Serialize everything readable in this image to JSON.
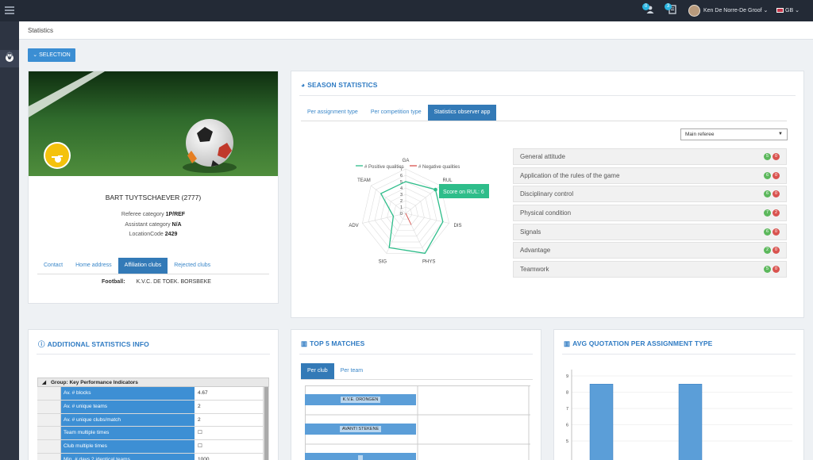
{
  "topbar": {
    "notif1_count": "0",
    "notif2_count": "3",
    "user_name": "Ken De Norre-De Groof",
    "language": "GB"
  },
  "breadcrumb": "Statistics",
  "selection_button": "SELECTION",
  "profile": {
    "name": "BART TUYTSCHAEVER (2777)",
    "referee_label": "Referee category",
    "referee_value": "1P/REF",
    "assistant_label": "Assistant category",
    "assistant_value": "N/A",
    "location_label": "LocationCode",
    "location_value": "2429",
    "tabs": [
      "Contact",
      "Home address",
      "Affiliation clubs",
      "Rejected clubs"
    ],
    "active_tab": 2,
    "affiliation_label": "Football:",
    "affiliation_value": "K.V.C. DE TOEK. BORSBEKE"
  },
  "season": {
    "title": "SEASON STATISTICS",
    "tabs": [
      "Per assignment type",
      "Per competition type",
      "Statistics observer app"
    ],
    "active_tab": 2,
    "dropdown": "Main referee",
    "legend_positive": "# Positive qualities",
    "legend_negative": "# Negative qualities",
    "tooltip": "Score on RUL: 6",
    "axes": [
      "GA",
      "RUL",
      "DIS",
      "PHYS",
      "SIG",
      "ADV",
      "TEAM"
    ],
    "ticks": [
      "7",
      "6",
      "5",
      "4",
      "3",
      "2",
      "1",
      "0"
    ],
    "qualities": [
      {
        "label": "General attitude",
        "pos": "5",
        "neg": "0"
      },
      {
        "label": "Application of the rules of the game",
        "pos": "6",
        "neg": "0"
      },
      {
        "label": "Disciplinary control",
        "pos": "6",
        "neg": "0"
      },
      {
        "label": "Physical condition",
        "pos": "7",
        "neg": "2"
      },
      {
        "label": "Signals",
        "pos": "6",
        "neg": "0"
      },
      {
        "label": "Advantage",
        "pos": "2",
        "neg": "0"
      },
      {
        "label": "Teamwork",
        "pos": "5",
        "neg": "0"
      }
    ],
    "colors": {
      "positive": "#2ebd8a",
      "negative": "#d9534f"
    }
  },
  "chart_data": {
    "type": "radar",
    "categories": [
      "GA",
      "RUL",
      "DIS",
      "PHYS",
      "SIG",
      "ADV",
      "TEAM"
    ],
    "series": [
      {
        "name": "# Positive qualities",
        "values": [
          5,
          6,
          6,
          7,
          6,
          2,
          5
        ]
      },
      {
        "name": "# Negative qualities",
        "values": [
          0,
          0,
          0,
          2,
          0,
          0,
          0
        ]
      }
    ],
    "ylim": [
      0,
      7
    ]
  },
  "additional": {
    "title": "ADDITIONAL STATISTICS INFO",
    "group": "Group: Key Performance Indicators",
    "rows": [
      {
        "label": "Av. # blocks",
        "value": "4.67"
      },
      {
        "label": "Av. # unique teams",
        "value": "2"
      },
      {
        "label": "Av. # unique clubs/match",
        "value": "2"
      },
      {
        "label": "Team multiple times",
        "value": "☐"
      },
      {
        "label": "Club multiple times",
        "value": "☐"
      },
      {
        "label": "Min. # days 2 identical teams",
        "value": "1000"
      },
      {
        "label": "",
        "value": ""
      }
    ]
  },
  "top5": {
    "title": "TOP 5 MATCHES",
    "tabs": [
      "Per club",
      "Per team"
    ],
    "active_tab": 0,
    "clubs": [
      "K.V.E. DRONGEN",
      "AVANTI STEKENE",
      ""
    ]
  },
  "avg": {
    "title": "AVG QUOTATION PER ASSIGNMENT TYPE",
    "ticks": [
      "9",
      "8",
      "7",
      "6",
      "5"
    ],
    "bars": [
      8.5,
      8.5
    ]
  }
}
